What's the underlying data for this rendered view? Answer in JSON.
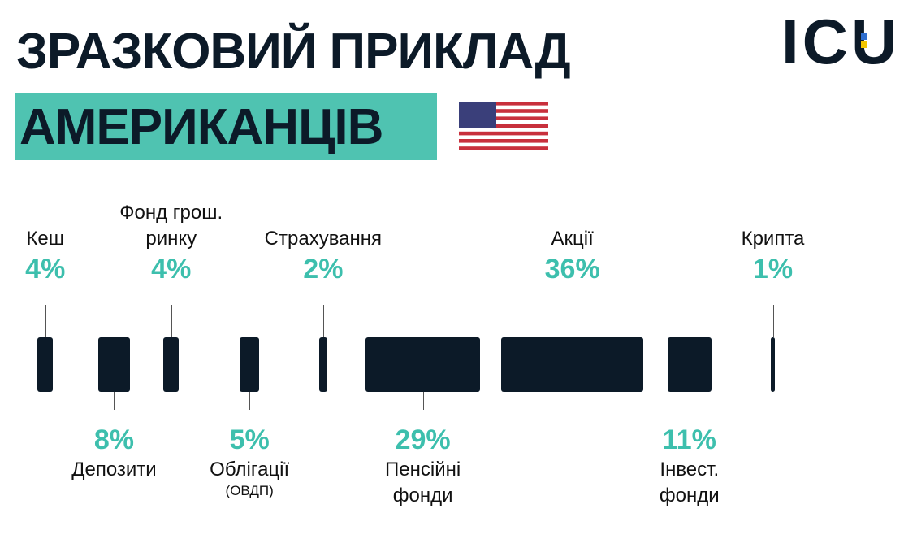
{
  "logo": "ICU",
  "chart_data": {
    "type": "bar",
    "title": "ЗРАЗКОВИЙ ПРИКЛАД",
    "subtitle": "АМЕРИКАНЦІВ",
    "categories": [
      "Кеш",
      "Депозити",
      "Фонд грош. ринку",
      "Облігації",
      "Страхування",
      "Пенсійні фонди",
      "Акції",
      "Інвест. фонди",
      "Крипта"
    ],
    "values": [
      4,
      8,
      4,
      5,
      2,
      29,
      36,
      11,
      1
    ],
    "value_labels": [
      "4%",
      "8%",
      "4%",
      "5%",
      "2%",
      "29%",
      "36%",
      "11%",
      "1%"
    ],
    "annotation": "(ОВДП)",
    "color": "#0c1a28",
    "label_color": "#3dbfad"
  }
}
